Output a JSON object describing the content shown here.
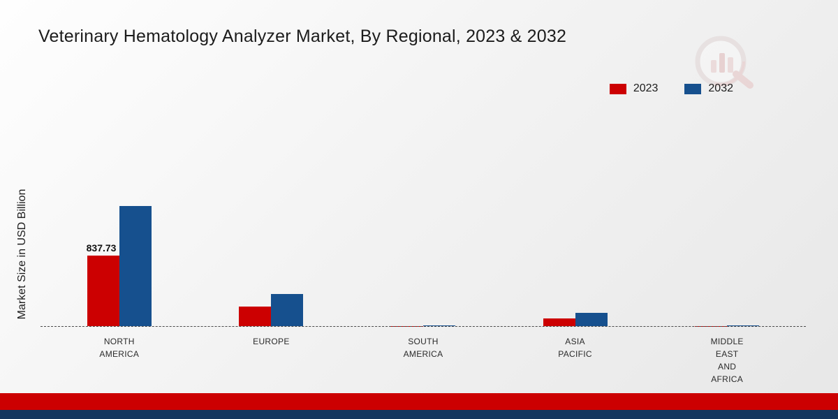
{
  "title": "Veterinary Hematology Analyzer Market, By Regional, 2023 & 2032",
  "ylabel": "Market Size in USD Billion",
  "legend": [
    {
      "label": "2023",
      "color": "#cc0001"
    },
    {
      "label": "2032",
      "color": "#16508e"
    }
  ],
  "chart_data": {
    "type": "bar",
    "title": "Veterinary Hematology Analyzer Market, By Regional, 2023 & 2032",
    "xlabel": "",
    "ylabel": "Market Size in USD Billion",
    "categories": [
      "NORTH\nAMERICA",
      "EUROPE",
      "SOUTH\nAMERICA",
      "ASIA\nPACIFIC",
      "MIDDLE\nEAST\nAND\nAFRICA"
    ],
    "series": [
      {
        "name": "2023",
        "color": "#cc0001",
        "values": [
          837.73,
          235,
          4,
          92,
          3
        ]
      },
      {
        "name": "2032",
        "color": "#16508e",
        "values": [
          1435,
          385,
          7,
          158,
          5
        ]
      }
    ],
    "ylim": [
      0,
      1500
    ],
    "grid": false,
    "legend_position": "top-right",
    "baseline": "dashed",
    "data_labels": [
      {
        "series_index": 0,
        "category_index": 0,
        "text": "837.73"
      }
    ]
  },
  "footer": {
    "red_color": "#cc0001",
    "navy_color": "#14365e"
  }
}
